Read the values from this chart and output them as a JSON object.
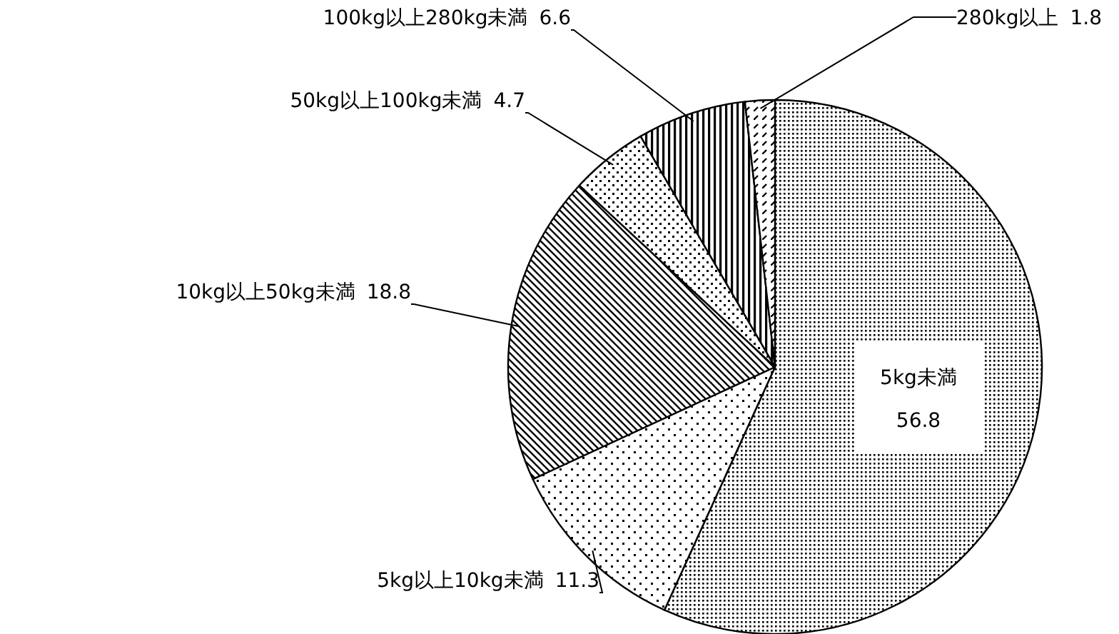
{
  "chart_data": {
    "type": "pie",
    "categories": [
      "5kg未満",
      "5kg以上10kg未満",
      "10kg以上50kg未満",
      "50kg以上100kg未満",
      "100kg以上280kg未満",
      "280kg以上"
    ],
    "values": [
      56.8,
      11.3,
      18.8,
      4.7,
      6.6,
      1.8
    ],
    "data_labels": true
  }
}
